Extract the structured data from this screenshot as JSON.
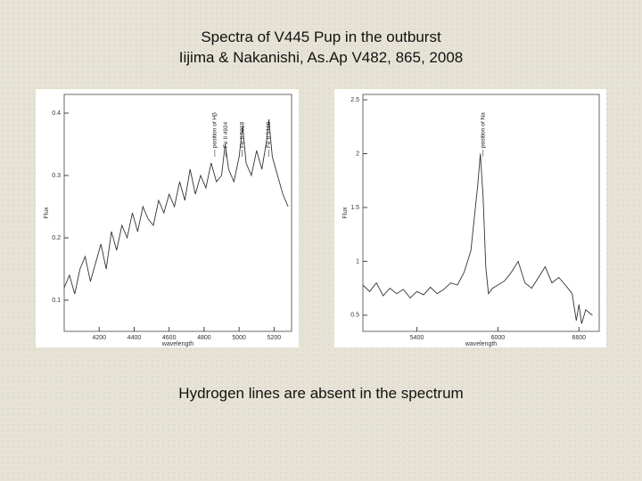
{
  "slide": {
    "title": "Spectra  of  V445 Pup  in the outburst",
    "subtitle": "Iijima & Nakanishi, As.Ap V482, 865, 2008",
    "caption": "Hydrogen  lines  are  absent  in  the  spectrum"
  },
  "chart_data": [
    {
      "type": "line",
      "x_label": "wavelength",
      "y_label": "Flux",
      "xlim": [
        4000,
        5300
      ],
      "xticks": [
        4200,
        4400,
        4600,
        4800,
        5000,
        5200
      ],
      "ylim": [
        0.05,
        0.43
      ],
      "yticks": [
        0.1,
        0.2,
        0.3,
        0.4
      ],
      "color": "#333333",
      "x": [
        4000,
        4030,
        4060,
        4090,
        4120,
        4150,
        4180,
        4210,
        4240,
        4270,
        4300,
        4330,
        4360,
        4390,
        4420,
        4450,
        4480,
        4510,
        4540,
        4570,
        4600,
        4630,
        4660,
        4690,
        4720,
        4750,
        4780,
        4810,
        4840,
        4870,
        4900,
        4920,
        4940,
        4970,
        5000,
        5020,
        5040,
        5070,
        5100,
        5130,
        5160,
        5170,
        5190,
        5220,
        5250,
        5280
      ],
      "values": [
        0.12,
        0.14,
        0.11,
        0.15,
        0.17,
        0.13,
        0.16,
        0.19,
        0.15,
        0.21,
        0.18,
        0.22,
        0.2,
        0.24,
        0.21,
        0.25,
        0.23,
        0.22,
        0.26,
        0.24,
        0.27,
        0.25,
        0.29,
        0.26,
        0.31,
        0.27,
        0.3,
        0.28,
        0.32,
        0.29,
        0.3,
        0.35,
        0.31,
        0.29,
        0.33,
        0.38,
        0.32,
        0.3,
        0.34,
        0.31,
        0.36,
        0.39,
        0.33,
        0.3,
        0.27,
        0.25
      ],
      "annotations": [
        {
          "text": "position of Hβ",
          "x": 4861
        },
        {
          "text": "Fe II 4924",
          "x": 4924
        },
        {
          "text": "Fe II 5018",
          "x": 5018
        },
        {
          "text": "Fe II 5169",
          "x": 5169
        }
      ]
    },
    {
      "type": "line",
      "x_label": "wavelength",
      "y_label": "Flux",
      "xlim": [
        5000,
        6750
      ],
      "xticks": [
        5400,
        6000,
        6600
      ],
      "ylim": [
        0.35,
        2.55
      ],
      "yticks": [
        0.5,
        1,
        1.5,
        2,
        2.5
      ],
      "color": "#333333",
      "x": [
        5000,
        5050,
        5100,
        5150,
        5200,
        5250,
        5300,
        5350,
        5400,
        5450,
        5500,
        5550,
        5600,
        5650,
        5700,
        5750,
        5800,
        5850,
        5870,
        5890,
        5910,
        5930,
        5960,
        6000,
        6050,
        6100,
        6150,
        6200,
        6250,
        6300,
        6350,
        6400,
        6450,
        6500,
        6550,
        6580,
        6600,
        6620,
        6650,
        6700
      ],
      "values": [
        0.78,
        0.72,
        0.8,
        0.68,
        0.75,
        0.7,
        0.74,
        0.66,
        0.72,
        0.69,
        0.76,
        0.7,
        0.74,
        0.8,
        0.78,
        0.9,
        1.1,
        1.7,
        2.0,
        1.6,
        0.95,
        0.7,
        0.75,
        0.78,
        0.82,
        0.9,
        1.0,
        0.8,
        0.75,
        0.85,
        0.95,
        0.8,
        0.85,
        0.78,
        0.7,
        0.45,
        0.6,
        0.42,
        0.55,
        0.5
      ],
      "annotations": [
        {
          "text": "position of Na",
          "x": 5890
        }
      ]
    }
  ]
}
